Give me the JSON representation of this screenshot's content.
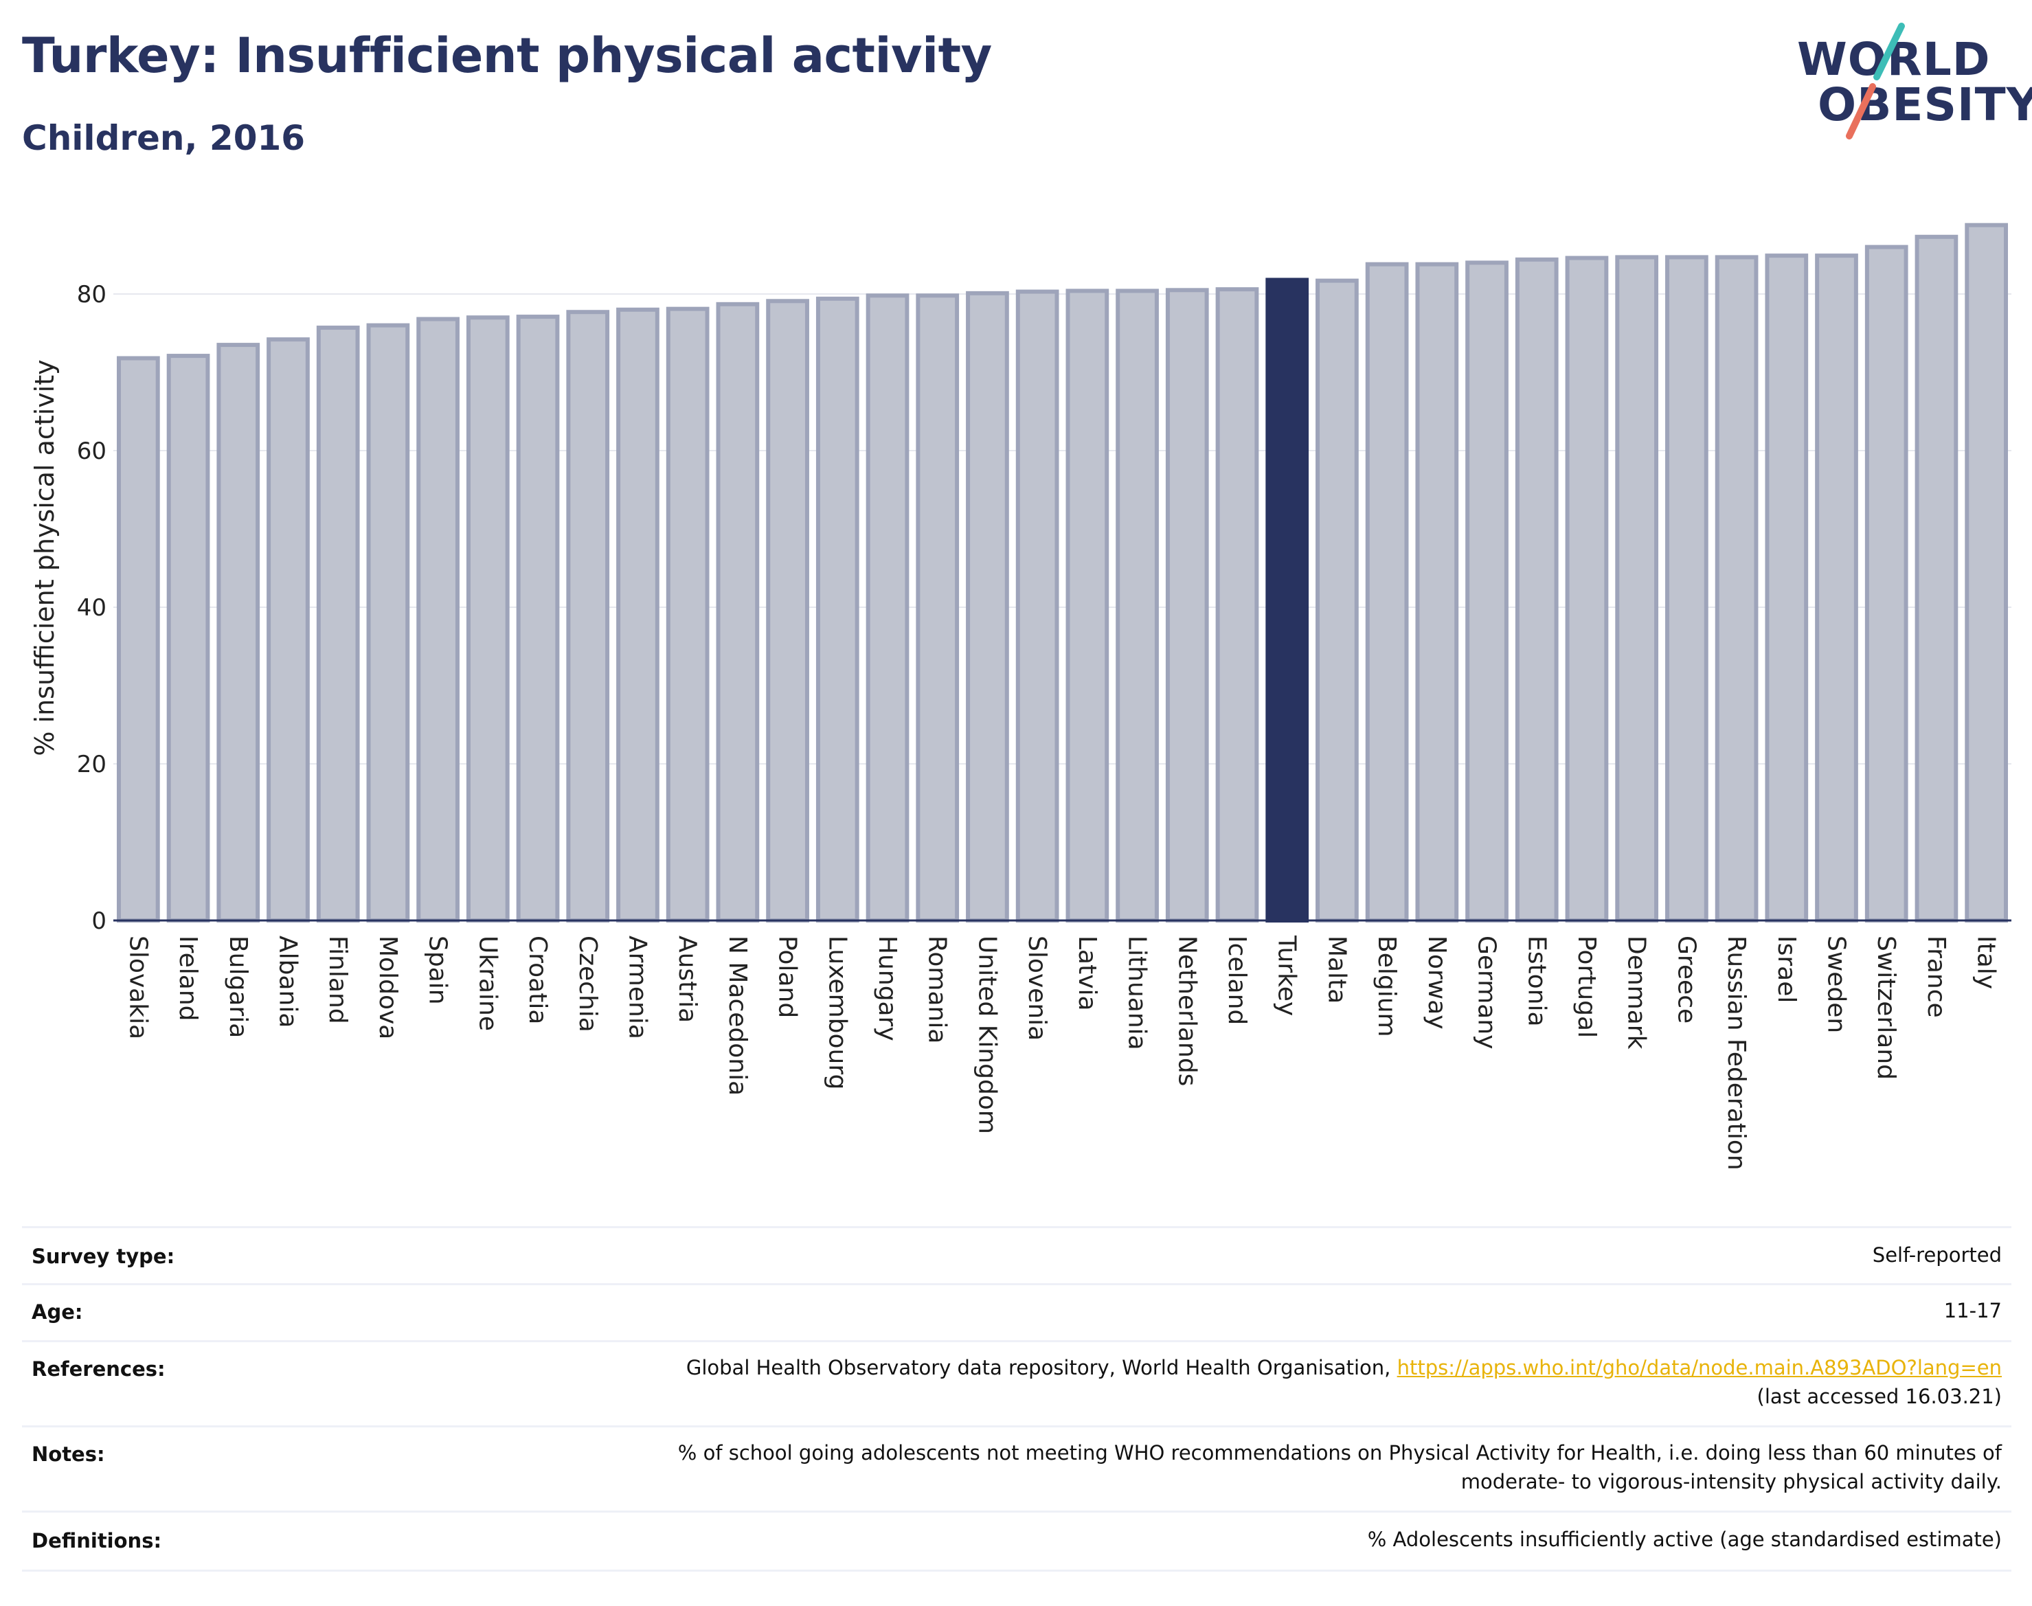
{
  "header": {
    "title": "Turkey: Insufficient physical activity",
    "subtitle": "Children, 2016"
  },
  "logo": {
    "line1": "WORLD",
    "line2": "OBESITY",
    "colors": {
      "navy": "#283360",
      "teal": "#3dbdb7",
      "coral": "#e9705c"
    }
  },
  "chart_data": {
    "type": "bar",
    "ylabel": "% insufficient physical activity",
    "xlabel": "",
    "ylim": [
      0,
      90
    ],
    "yticks": [
      0,
      20,
      40,
      60,
      80
    ],
    "grid": true,
    "highlight": "Turkey",
    "colors": {
      "bar": "#bfc3cf",
      "bar_edge": "#9ea4ba",
      "highlight": "#283360"
    },
    "categories": [
      "Slovakia",
      "Ireland",
      "Bulgaria",
      "Albania",
      "Finland",
      "Moldova",
      "Spain",
      "Ukraine",
      "Croatia",
      "Czechia",
      "Armenia",
      "Austria",
      "N Macedonia",
      "Poland",
      "Luxembourg",
      "Hungary",
      "Romania",
      "United Kingdom",
      "Slovenia",
      "Latvia",
      "Lithuania",
      "Netherlands",
      "Iceland",
      "Turkey",
      "Malta",
      "Belgium",
      "Norway",
      "Germany",
      "Estonia",
      "Portugal",
      "Denmark",
      "Greece",
      "Russian Federation",
      "Israel",
      "Sweden",
      "Switzerland",
      "France",
      "Italy"
    ],
    "values": [
      71.8,
      72.1,
      73.5,
      74.2,
      75.7,
      76.0,
      76.8,
      77.0,
      77.1,
      77.7,
      78.0,
      78.1,
      78.7,
      79.1,
      79.4,
      79.8,
      79.8,
      80.1,
      80.3,
      80.4,
      80.4,
      80.5,
      80.6,
      81.8,
      81.7,
      83.8,
      83.8,
      84.0,
      84.4,
      84.6,
      84.7,
      84.7,
      84.7,
      84.9,
      84.9,
      86.0,
      87.3,
      88.8
    ]
  },
  "info": {
    "survey_type": {
      "label": "Survey type:",
      "value": "Self-reported"
    },
    "age": {
      "label": "Age:",
      "value": "11-17"
    },
    "references": {
      "label": "References:",
      "text": "Global Health Observatory data repository, World Health Organisation,",
      "link": "https://apps.who.int/gho/data/node.main.A893ADO?lang=en",
      "accessed": "(last accessed 16.03.21)"
    },
    "notes": {
      "label": "Notes:",
      "line1": "% of school going adolescents not meeting WHO recommendations on Physical Activity for Health, i.e. doing less than 60 minutes of",
      "line2": "moderate- to vigorous-intensity physical activity daily."
    },
    "definitions": {
      "label": "Definitions:",
      "value": "% Adolescents insufficiently active (age standardised estimate)"
    }
  }
}
